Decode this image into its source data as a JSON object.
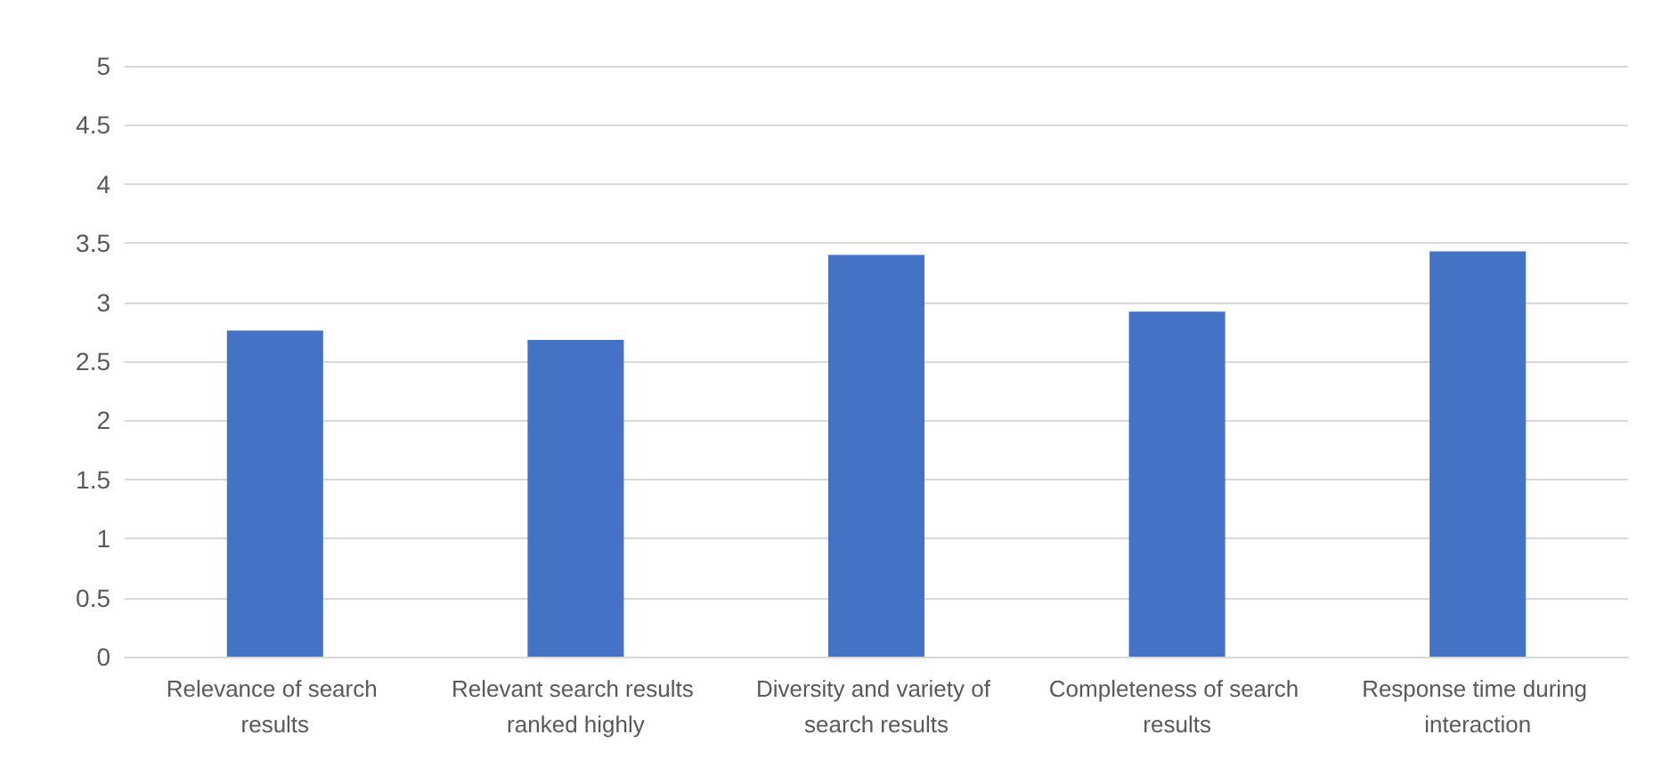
{
  "chart_data": {
    "type": "bar",
    "categories": [
      "Relevance of search results",
      "Relevant search results ranked highly",
      "Diversity and variety of search results",
      "Completeness of search results",
      "Response time during interaction"
    ],
    "values": [
      2.76,
      2.68,
      3.4,
      2.92,
      3.43
    ],
    "color": "#4472c4",
    "ylim": [
      0,
      5
    ],
    "yticks": [
      0,
      0.5,
      1,
      1.5,
      2,
      2.5,
      3,
      3.5,
      4,
      4.5,
      5
    ],
    "grid": "y"
  }
}
